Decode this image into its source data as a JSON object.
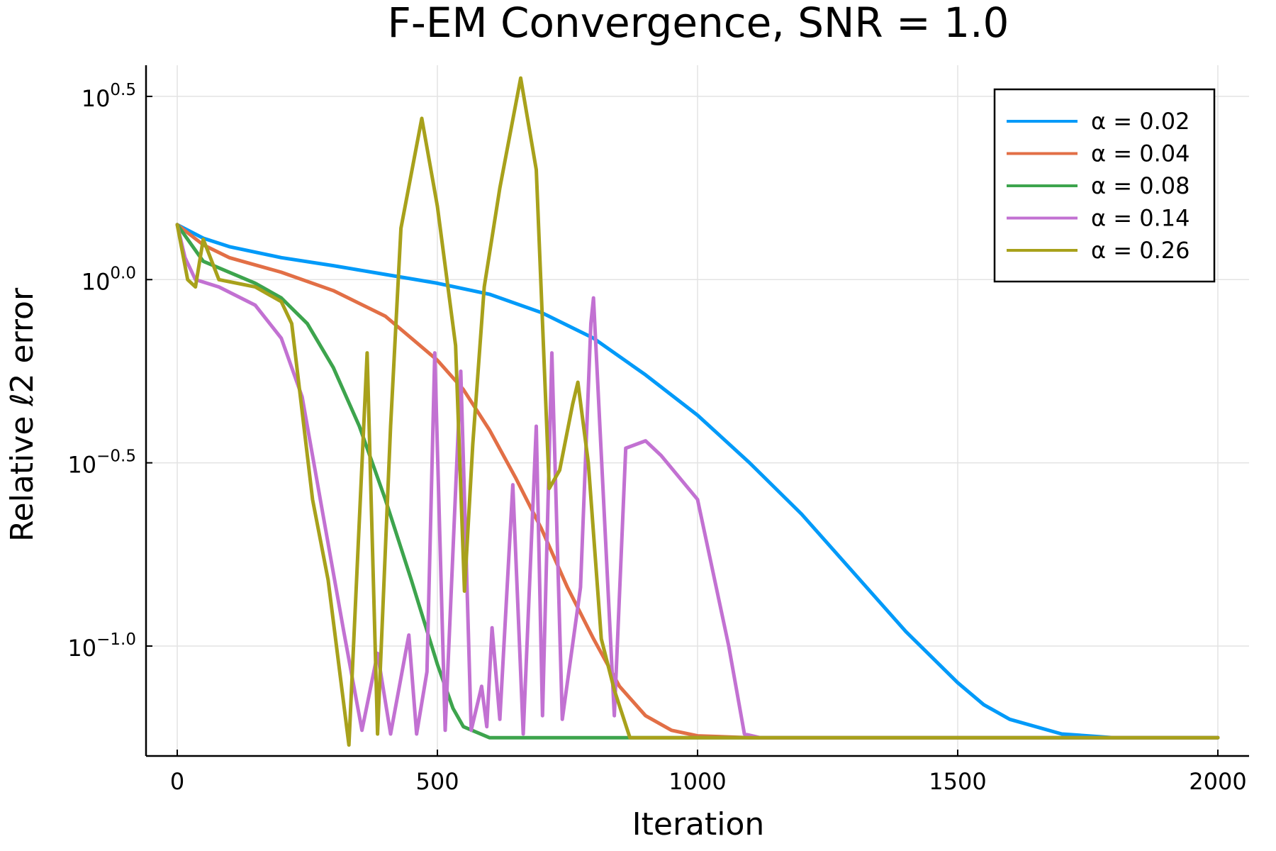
{
  "chart_data": {
    "type": "line",
    "title": "F-EM Convergence, SNR = 1.0",
    "xlabel": "Iteration",
    "ylabel": "Relative ℓ2 error",
    "xscale": "linear",
    "yscale": "log10",
    "xlim": [
      -60,
      2060
    ],
    "ylim_log10": [
      -1.3,
      0.585
    ],
    "xticks": [
      0,
      500,
      1000,
      1500,
      2000
    ],
    "xtick_labels": [
      "0",
      "500",
      "1000",
      "1500",
      "2000"
    ],
    "yticks_log10": [
      -1.0,
      -0.5,
      0.0,
      0.5
    ],
    "ytick_labels": [
      {
        "base": "10",
        "exp": "−1.0"
      },
      {
        "base": "10",
        "exp": "−0.5"
      },
      {
        "base": "10",
        "exp": "0.0"
      },
      {
        "base": "10",
        "exp": "0.5"
      }
    ],
    "grid": true,
    "legend_position": "top-right",
    "series": [
      {
        "name": "α = 0.02",
        "color": "#009af9",
        "x": [
          0,
          50,
          100,
          200,
          300,
          400,
          500,
          600,
          700,
          800,
          900,
          1000,
          1100,
          1200,
          1300,
          1400,
          1500,
          1550,
          1600,
          1700,
          1800,
          1900,
          2000
        ],
        "y": [
          0.15,
          0.113,
          0.09,
          0.06,
          0.038,
          0.014,
          -0.01,
          -0.04,
          -0.09,
          -0.16,
          -0.26,
          -0.37,
          -0.5,
          -0.64,
          -0.8,
          -0.96,
          -1.1,
          -1.16,
          -1.2,
          -1.24,
          -1.25,
          -1.25,
          -1.25
        ]
      },
      {
        "name": "α = 0.04",
        "color": "#e26f46",
        "x": [
          0,
          50,
          100,
          200,
          300,
          400,
          450,
          500,
          550,
          600,
          650,
          700,
          750,
          800,
          850,
          900,
          950,
          1000,
          1100,
          1200,
          1400,
          1600,
          1800,
          2000
        ],
        "y": [
          0.15,
          0.095,
          0.06,
          0.02,
          -0.03,
          -0.1,
          -0.16,
          -0.22,
          -0.3,
          -0.41,
          -0.54,
          -0.68,
          -0.84,
          -0.98,
          -1.11,
          -1.19,
          -1.23,
          -1.245,
          -1.25,
          -1.25,
          -1.25,
          -1.25,
          -1.25,
          -1.25
        ]
      },
      {
        "name": "α = 0.08",
        "color": "#3da44d",
        "x": [
          0,
          50,
          100,
          150,
          200,
          250,
          300,
          350,
          400,
          450,
          500,
          530,
          550,
          600,
          700,
          800,
          900,
          1000,
          1200,
          1400,
          1600,
          1800,
          2000
        ],
        "y": [
          0.15,
          0.05,
          0.02,
          -0.01,
          -0.05,
          -0.12,
          -0.24,
          -0.4,
          -0.6,
          -0.82,
          -1.05,
          -1.17,
          -1.22,
          -1.25,
          -1.25,
          -1.25,
          -1.25,
          -1.25,
          -1.25,
          -1.25,
          -1.25,
          -1.25,
          -1.25
        ]
      },
      {
        "name": "α = 0.14",
        "color": "#c271d2",
        "x": [
          0,
          15,
          35,
          80,
          150,
          200,
          240,
          280,
          320,
          355,
          385,
          410,
          445,
          460,
          480,
          495,
          515,
          545,
          565,
          585,
          595,
          605,
          620,
          645,
          665,
          690,
          702,
          720,
          740,
          775,
          795,
          800,
          840,
          862,
          900,
          930,
          1000,
          1060,
          1090,
          1120,
          1150,
          1200,
          1400,
          1600,
          1800,
          2000
        ],
        "y": [
          0.15,
          0.06,
          0.0,
          -0.02,
          -0.07,
          -0.16,
          -0.32,
          -0.64,
          -0.96,
          -1.23,
          -1.02,
          -1.24,
          -0.97,
          -1.24,
          -1.07,
          -0.2,
          -1.23,
          -0.25,
          -1.23,
          -1.11,
          -1.22,
          -0.95,
          -1.2,
          -0.56,
          -1.24,
          -0.4,
          -1.19,
          -0.2,
          -1.2,
          -0.84,
          -0.12,
          -0.05,
          -1.19,
          -0.46,
          -0.44,
          -0.48,
          -0.6,
          -1.0,
          -1.24,
          -1.25,
          -1.25,
          -1.25,
          -1.25,
          -1.25,
          -1.25,
          -1.25
        ]
      },
      {
        "name": "α = 0.26",
        "color": "#a8a11b",
        "x": [
          0,
          20,
          35,
          50,
          80,
          150,
          200,
          220,
          260,
          290,
          330,
          365,
          385,
          410,
          430,
          470,
          500,
          535,
          552,
          568,
          590,
          620,
          660,
          690,
          715,
          735,
          760,
          770,
          790,
          815,
          840,
          870,
          900,
          1000,
          1200,
          1400,
          1600,
          1800,
          2000
        ],
        "y": [
          0.15,
          0.0,
          -0.02,
          0.11,
          0.0,
          -0.02,
          -0.06,
          -0.12,
          -0.6,
          -0.82,
          -1.27,
          -0.2,
          -1.24,
          -0.4,
          0.14,
          0.44,
          0.2,
          -0.18,
          -0.85,
          -0.45,
          -0.02,
          0.25,
          0.55,
          0.3,
          -0.57,
          -0.52,
          -0.34,
          -0.28,
          -0.5,
          -0.98,
          -1.12,
          -1.25,
          -1.25,
          -1.25,
          -1.25,
          -1.25,
          -1.25,
          -1.25,
          -1.25
        ]
      }
    ]
  }
}
